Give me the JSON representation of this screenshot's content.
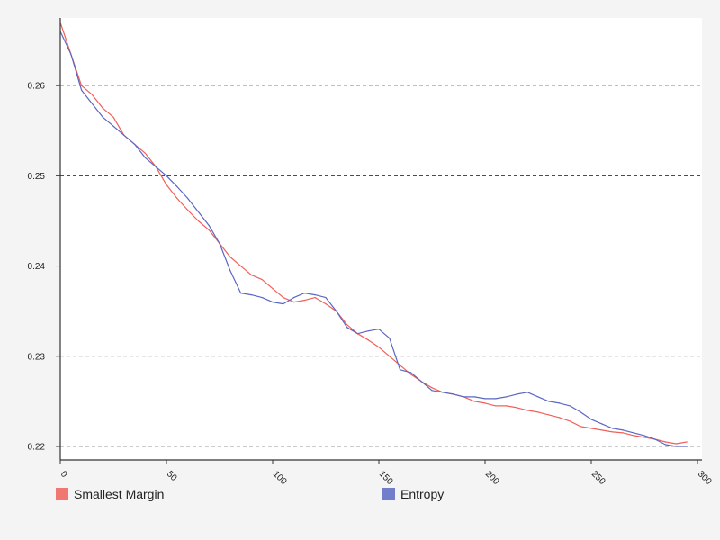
{
  "chart_data": {
    "type": "line",
    "title": "",
    "xlabel": "",
    "ylabel": "",
    "xlim": [
      0,
      300
    ],
    "ylim": [
      0.2185,
      0.2675
    ],
    "x_ticks": [
      0,
      50,
      100,
      150,
      200,
      250,
      300
    ],
    "y_ticks": [
      0.22,
      0.23,
      0.24,
      0.25,
      0.26
    ],
    "y_tick_labels": [
      "0.22",
      "0.23",
      "0.24",
      "0.25",
      "0.26"
    ],
    "x_tick_labels": [
      "0",
      "50",
      "100",
      "150",
      "200",
      "250",
      "300"
    ],
    "grid": "horizontal dashed",
    "legend_position": "bottom",
    "series": [
      {
        "name": "Smallest Margin",
        "color": "#f0605a",
        "x": [
          0,
          5,
          10,
          15,
          20,
          25,
          30,
          35,
          40,
          45,
          50,
          55,
          60,
          65,
          70,
          75,
          80,
          85,
          90,
          95,
          100,
          105,
          110,
          115,
          120,
          125,
          130,
          135,
          140,
          145,
          150,
          155,
          160,
          165,
          170,
          175,
          180,
          185,
          190,
          195,
          200,
          205,
          210,
          215,
          220,
          225,
          230,
          235,
          240,
          245,
          250,
          255,
          260,
          265,
          270,
          275,
          280,
          285,
          290,
          295
        ],
        "values": [
          0.267,
          0.2635,
          0.26,
          0.259,
          0.2575,
          0.2565,
          0.2545,
          0.2535,
          0.2525,
          0.251,
          0.249,
          0.2475,
          0.2462,
          0.245,
          0.244,
          0.2425,
          0.241,
          0.24,
          0.239,
          0.2385,
          0.2375,
          0.2365,
          0.236,
          0.2362,
          0.2365,
          0.2358,
          0.235,
          0.2335,
          0.2325,
          0.2318,
          0.231,
          0.23,
          0.229,
          0.228,
          0.2272,
          0.2265,
          0.226,
          0.2258,
          0.2255,
          0.225,
          0.2248,
          0.2245,
          0.2245,
          0.2243,
          0.224,
          0.2238,
          0.2235,
          0.2232,
          0.2228,
          0.2222,
          0.222,
          0.2218,
          0.2216,
          0.2215,
          0.2212,
          0.221,
          0.2208,
          0.2205,
          0.2203,
          0.2205
        ]
      },
      {
        "name": "Entropy",
        "color": "#5b67c4",
        "x": [
          0,
          5,
          10,
          15,
          20,
          25,
          30,
          35,
          40,
          45,
          50,
          55,
          60,
          65,
          70,
          75,
          80,
          85,
          90,
          95,
          100,
          105,
          110,
          115,
          120,
          125,
          130,
          135,
          140,
          145,
          150,
          155,
          160,
          165,
          170,
          175,
          180,
          185,
          190,
          195,
          200,
          205,
          210,
          215,
          220,
          225,
          230,
          235,
          240,
          245,
          250,
          255,
          260,
          265,
          270,
          275,
          280,
          285,
          290,
          295
        ],
        "values": [
          0.266,
          0.2635,
          0.2595,
          0.258,
          0.2565,
          0.2555,
          0.2545,
          0.2535,
          0.252,
          0.251,
          0.25,
          0.2488,
          0.2475,
          0.246,
          0.2445,
          0.2425,
          0.2395,
          0.237,
          0.2368,
          0.2365,
          0.236,
          0.2358,
          0.2365,
          0.237,
          0.2368,
          0.2365,
          0.235,
          0.2332,
          0.2325,
          0.2328,
          0.233,
          0.232,
          0.2285,
          0.2282,
          0.2272,
          0.2262,
          0.226,
          0.2258,
          0.2255,
          0.2255,
          0.2253,
          0.2253,
          0.2255,
          0.2258,
          0.226,
          0.2255,
          0.225,
          0.2248,
          0.2245,
          0.2238,
          0.223,
          0.2225,
          0.222,
          0.2218,
          0.2215,
          0.2212,
          0.2208,
          0.2202,
          0.22,
          0.22
        ]
      }
    ]
  }
}
